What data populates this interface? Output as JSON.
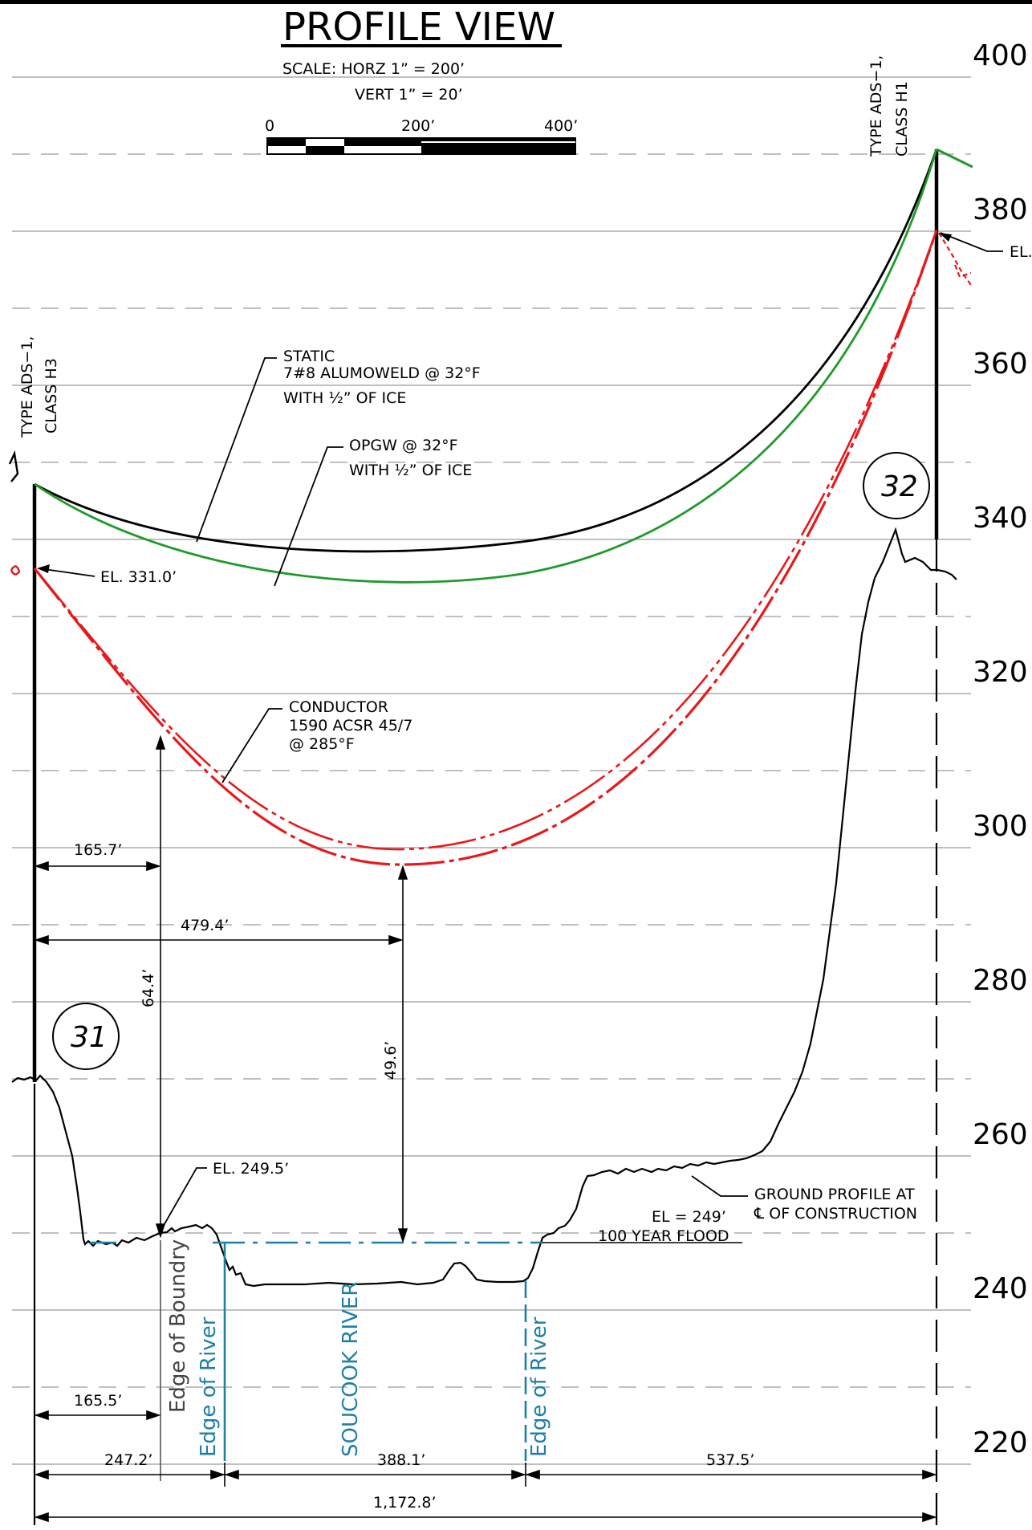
{
  "title": "PROFILE VIEW",
  "scale": {
    "horizontal": "SCALE:  HORZ  1”  =  200’",
    "vertical": "VERT  1”  =  20’",
    "bar_labels": [
      "0",
      "200’",
      "400’"
    ]
  },
  "elevation_axis": {
    "labels": [
      "400",
      "380",
      "360",
      "340",
      "320",
      "300",
      "280",
      "260",
      "240",
      "220"
    ]
  },
  "structures": {
    "left": {
      "type_line1": "TYPE  ADS−1,",
      "type_line2": "CLASS  H3",
      "number": "31",
      "attach_elevation": "EL.  331.0’"
    },
    "right": {
      "type_line1": "TYPE  ADS−1,",
      "type_line2": "CLASS  H1",
      "number": "32",
      "attach_elevation": "EL."
    }
  },
  "wires": {
    "static": [
      "STATIC",
      "7#8  ALUMOWELD  @  32°F",
      "WITH  ½”  OF  ICE"
    ],
    "opgw": [
      "OPGW  @  32°F",
      "WITH  ½”  OF  ICE"
    ],
    "conductor": [
      "CONDUCTOR",
      "1590  ACSR  45/7",
      "@  285°F"
    ]
  },
  "ground": {
    "profile_label": [
      "GROUND  PROFILE  AT",
      "℄  OF  CONSTRUCTION"
    ],
    "boundary_elevation": "EL.  249.5’",
    "flood_elevation": "EL  =  249’",
    "flood_label": "100  YEAR  FLOOD"
  },
  "vertical_labels": {
    "edge_of_boundary": "Edge  of  Boundry",
    "edge_of_river_left": "Edge  of  River",
    "river_name": "SOUCOOK  RIVER",
    "edge_of_river_right": "Edge  of  River"
  },
  "dimensions": {
    "horizontal": [
      "165.7’",
      "479.4’",
      "165.5’",
      "247.2’",
      "388.1’",
      "537.5’",
      "1,172.8’"
    ],
    "vertical": [
      "64.4’",
      "49.6’"
    ]
  },
  "colors": {
    "static_wire": "#000000",
    "opgw_wire": "#1e9a2a",
    "conductor": "#e8181a",
    "river": "#1f7fa6",
    "grid": "#9a9a9a"
  }
}
